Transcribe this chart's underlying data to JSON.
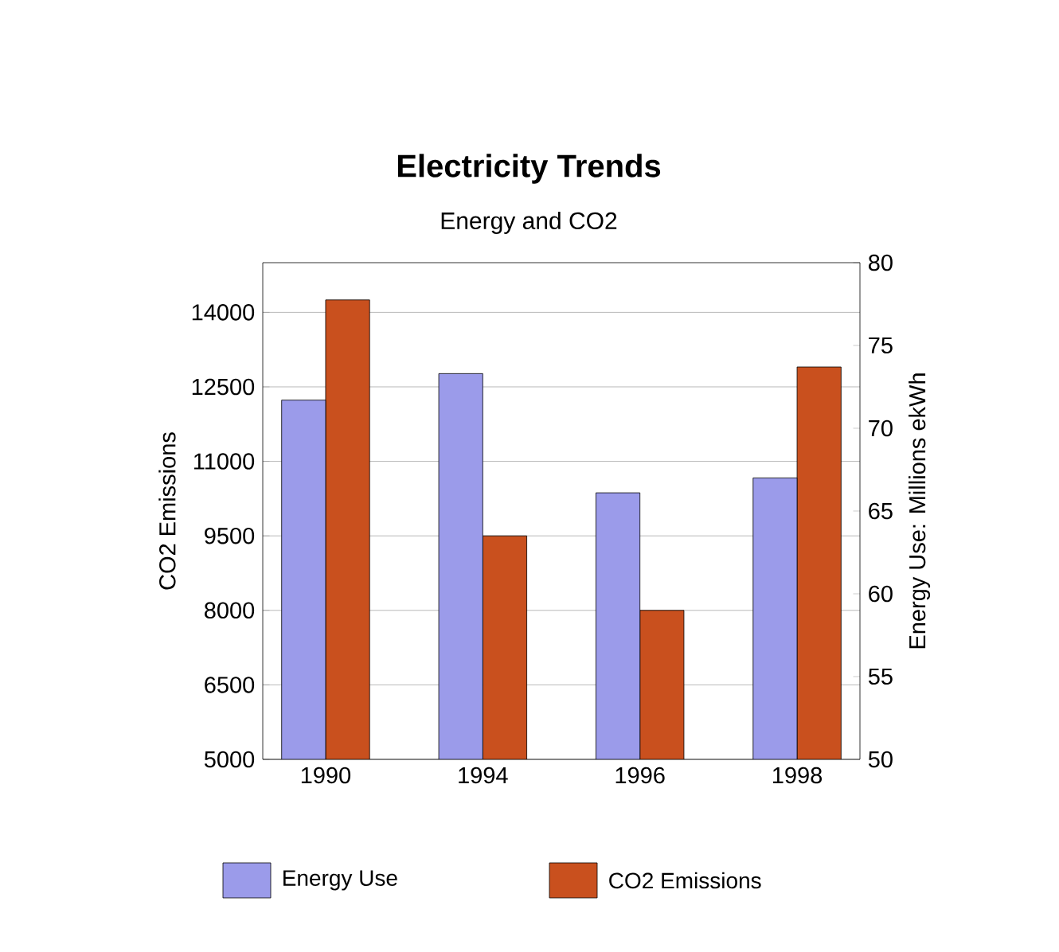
{
  "chart_data": {
    "type": "bar",
    "title": "Electricity Trends",
    "subtitle": "Energy and CO2",
    "ylabel": "CO2 Emissions",
    "y2label": "Energy Use: Millions ekWh",
    "categories": [
      "1990",
      "1994",
      "1996",
      "1998"
    ],
    "series": [
      {
        "name": "Energy Use",
        "color": "#9b9bea",
        "axis": "y2",
        "values": [
          71.7,
          73.3,
          66.1,
          67.0
        ]
      },
      {
        "name": "CO2 Emissions",
        "color": "#c9501e",
        "values": [
          14250,
          9500,
          8000,
          12900
        ]
      }
    ],
    "ylim": [
      5000,
      15000
    ],
    "yticks": [
      5000,
      6500,
      8000,
      9500,
      11000,
      12500,
      14000
    ],
    "y2lim": [
      50,
      80
    ],
    "y2ticks": [
      50,
      55,
      60,
      65,
      70,
      75,
      80
    ],
    "grid": "y",
    "legend": "bottom"
  }
}
